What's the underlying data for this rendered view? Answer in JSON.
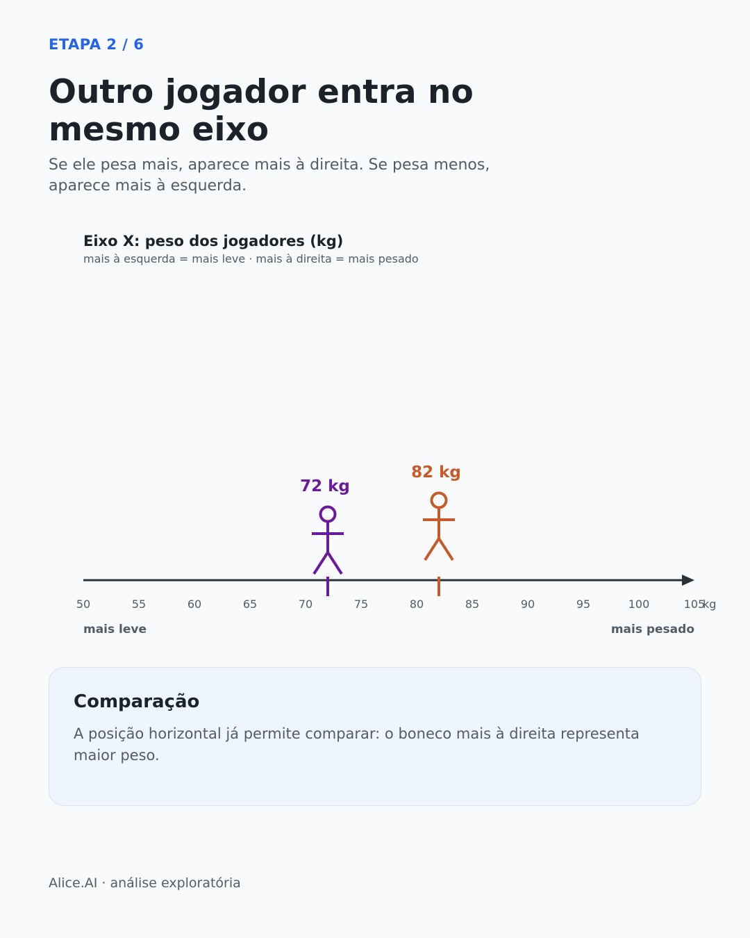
{
  "step_label": "ETAPA 2 / 6",
  "title": "Outro jogador entra no mesmo eixo",
  "subtitle": "Se ele pesa mais, aparece mais à direita. Se pesa menos, aparece mais à esquerda.",
  "chart_data": {
    "type": "scatter",
    "title": "Eixo X: peso dos jogadores (kg)",
    "subtitle": "mais à esquerda = mais leve · mais à direita = mais pesado",
    "xlim": [
      50,
      105
    ],
    "ticks": [
      50,
      55,
      60,
      65,
      70,
      75,
      80,
      85,
      90,
      95,
      100,
      105
    ],
    "unit": "kg",
    "left_label": "mais leve",
    "right_label": "mais pesado",
    "axis_color": "#2b3137",
    "points": [
      {
        "value": 72,
        "label": "72 kg",
        "color": "#6a1b9a"
      },
      {
        "value": 82,
        "label": "82 kg",
        "color": "#c65a28"
      }
    ]
  },
  "card": {
    "title": "Comparação",
    "text": "A posição horizontal já permite comparar: o boneco mais à direita representa maior peso."
  },
  "footer": "Alice.AI · análise exploratória"
}
